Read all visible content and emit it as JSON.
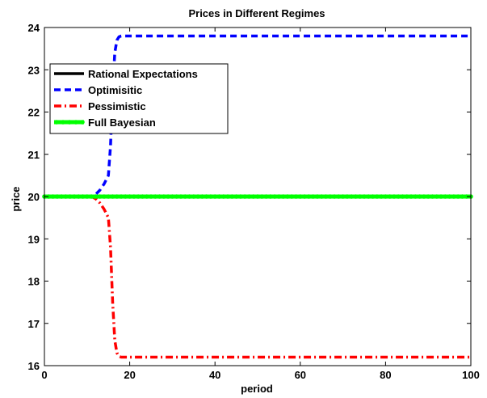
{
  "chart_data": {
    "type": "line",
    "title": "Prices in Different Regimes",
    "xlabel": "period",
    "ylabel": "price",
    "xlim": [
      0,
      100
    ],
    "ylim": [
      16,
      24
    ],
    "xticks": [
      0,
      20,
      40,
      60,
      80,
      100
    ],
    "yticks": [
      16,
      17,
      18,
      19,
      20,
      21,
      22,
      23,
      24
    ],
    "grid": false,
    "legend_position": "top-left",
    "series": [
      {
        "name": "Rational Expectations",
        "color": "#000000",
        "style": "solid",
        "x": [
          0,
          100
        ],
        "y": [
          20,
          20
        ]
      },
      {
        "name": "Optimisitic",
        "color": "#0000ff",
        "style": "dashed",
        "x": [
          0,
          10,
          11,
          12,
          13,
          14,
          15,
          15.5,
          16,
          16.5,
          17,
          17.5,
          18,
          19,
          20,
          30,
          40,
          50,
          60,
          70,
          80,
          90,
          100
        ],
        "y": [
          20,
          20,
          20,
          20.05,
          20.15,
          20.3,
          20.5,
          21.2,
          22.5,
          23.4,
          23.7,
          23.78,
          23.8,
          23.8,
          23.8,
          23.8,
          23.8,
          23.8,
          23.8,
          23.8,
          23.8,
          23.8,
          23.8
        ]
      },
      {
        "name": "Pessimistic",
        "color": "#ff0000",
        "style": "dashdot",
        "x": [
          0,
          10,
          11,
          12,
          13,
          14,
          15,
          15.5,
          16,
          16.5,
          17,
          17.5,
          18,
          19,
          20,
          30,
          40,
          50,
          60,
          70,
          80,
          90,
          100
        ],
        "y": [
          20,
          20,
          20,
          19.95,
          19.85,
          19.7,
          19.5,
          18.8,
          17.5,
          16.6,
          16.3,
          16.22,
          16.2,
          16.2,
          16.2,
          16.2,
          16.2,
          16.2,
          16.2,
          16.2,
          16.2,
          16.2,
          16.2
        ]
      },
      {
        "name": "Full Bayesian",
        "color": "#00ff00",
        "style": "solid-markers",
        "x": [
          0,
          100
        ],
        "y": [
          20,
          20
        ]
      }
    ]
  }
}
